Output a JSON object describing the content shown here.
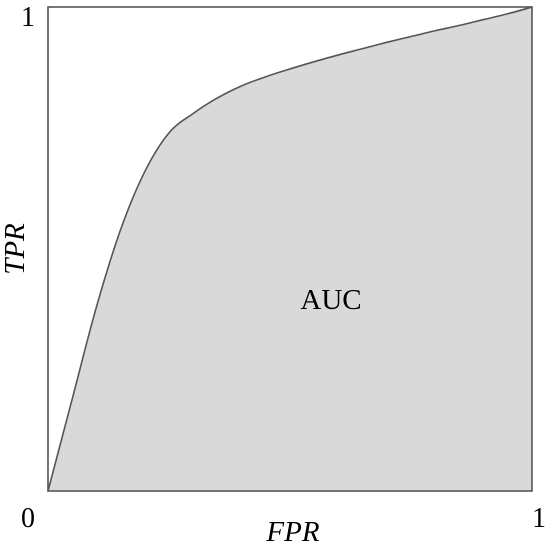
{
  "chart_data": {
    "type": "area",
    "title": "",
    "xlabel": "FPR",
    "ylabel": "TPR",
    "xlim": [
      0,
      1
    ],
    "ylim": [
      0,
      1
    ],
    "grid": false,
    "x_tick_labels": [
      "0",
      "1"
    ],
    "y_tick_labels": [
      "1"
    ],
    "annotation": "AUC",
    "series": [
      {
        "x": [
          0,
          0.05,
          0.1,
          0.15,
          0.2,
          0.25,
          0.3,
          0.35,
          0.4,
          0.45,
          0.5,
          0.55,
          0.6,
          0.65,
          0.7,
          0.75,
          0.8,
          0.85,
          0.9,
          0.95,
          1.0
        ],
        "y": [
          0,
          0.19,
          0.38,
          0.54,
          0.66,
          0.74,
          0.78,
          0.812,
          0.837,
          0.856,
          0.872,
          0.887,
          0.901,
          0.914,
          0.927,
          0.939,
          0.951,
          0.962,
          0.974,
          0.986,
          1.0
        ]
      }
    ],
    "colors": {
      "fill": "#d9d9d9",
      "line": "#555555",
      "frame": "#555555"
    }
  }
}
